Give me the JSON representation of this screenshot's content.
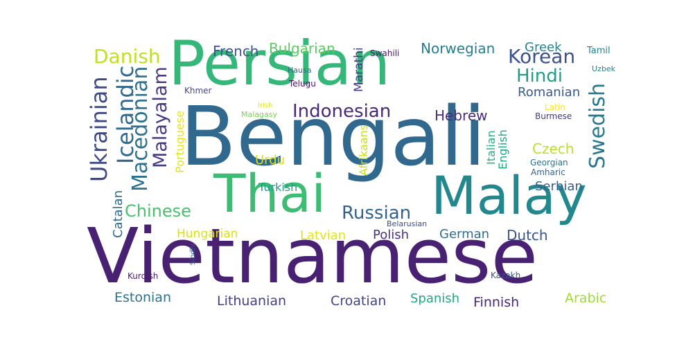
{
  "words": [
    {
      "text": "Bengali",
      "color": "#31688e"
    },
    {
      "text": "Vietnamese",
      "color": "#482173"
    },
    {
      "text": "Persian",
      "color": "#35b779"
    },
    {
      "text": "Thai",
      "color": "#3dbc74"
    },
    {
      "text": "Malay",
      "color": "#23888e"
    },
    {
      "text": "Indonesian",
      "color": "#482878"
    },
    {
      "text": "Danish",
      "color": "#c2df23"
    },
    {
      "text": "Korean",
      "color": "#3b528b"
    },
    {
      "text": "Hindi",
      "color": "#1f9e89"
    },
    {
      "text": "Russian",
      "color": "#33638d"
    },
    {
      "text": "Chinese",
      "color": "#4ac16d"
    },
    {
      "text": "Swedish",
      "color": "#2a788e"
    },
    {
      "text": "Ukrainian",
      "color": "#3e4989"
    },
    {
      "text": "Icelandic",
      "color": "#31688e"
    },
    {
      "text": "Macedonian",
      "color": "#2c728e"
    },
    {
      "text": "Malayalam",
      "color": "#443983"
    },
    {
      "text": "Norwegian",
      "color": "#287c8e"
    },
    {
      "text": "French",
      "color": "#3b528b"
    },
    {
      "text": "Bulgarian",
      "color": "#5ec962"
    },
    {
      "text": "Greek",
      "color": "#25858e"
    },
    {
      "text": "Tamil",
      "color": "#26828e"
    },
    {
      "text": "Swahili",
      "color": "#48186a"
    },
    {
      "text": "Marathi",
      "color": "#443a83"
    },
    {
      "text": "Hausa",
      "color": "#31688e"
    },
    {
      "text": "Uzbek",
      "color": "#26828e"
    },
    {
      "text": "Khmer",
      "color": "#414487"
    },
    {
      "text": "Telugu",
      "color": "#471164"
    },
    {
      "text": "Romanian",
      "color": "#38598c"
    },
    {
      "text": "Hebrew",
      "color": "#472d7b"
    },
    {
      "text": "Latin",
      "color": "#fde725"
    },
    {
      "text": "Burmese",
      "color": "#453781"
    },
    {
      "text": "Irish",
      "color": "#dde318"
    },
    {
      "text": "Malagasy",
      "color": "#7ad151"
    },
    {
      "text": "Portuguese",
      "color": "#e5e419"
    },
    {
      "text": "Czech",
      "color": "#bddf26"
    },
    {
      "text": "Amharic",
      "color": "#33638d"
    },
    {
      "text": "Georgian",
      "color": "#2d708e"
    },
    {
      "text": "English",
      "color": "#20a486"
    },
    {
      "text": "Italian",
      "color": "#27ad81"
    },
    {
      "text": "Afrikaans",
      "color": "#c8e020"
    },
    {
      "text": "Urdu",
      "color": "#d5e21a"
    },
    {
      "text": "Turkish",
      "color": "#1e9b8a"
    },
    {
      "text": "Serbian",
      "color": "#355f8d"
    },
    {
      "text": "Catalan",
      "color": "#31688e"
    },
    {
      "text": "Hungarian",
      "color": "#d8e219"
    },
    {
      "text": "Belarusian",
      "color": "#3e4a89"
    },
    {
      "text": "Latvian",
      "color": "#e2e418"
    },
    {
      "text": "Polish",
      "color": "#46327e"
    },
    {
      "text": "German",
      "color": "#2e6e8e"
    },
    {
      "text": "Dutch",
      "color": "#3b528b"
    },
    {
      "text": "Sindhi",
      "color": "#38588c"
    },
    {
      "text": "Kurdish",
      "color": "#481b6d"
    },
    {
      "text": "Kazakh",
      "color": "#3b528b"
    },
    {
      "text": "Estonian",
      "color": "#2c718e"
    },
    {
      "text": "Lithuanian",
      "color": "#433e85"
    },
    {
      "text": "Croatian",
      "color": "#414487"
    },
    {
      "text": "Spanish",
      "color": "#22a785"
    },
    {
      "text": "Finnish",
      "color": "#482475"
    },
    {
      "text": "Arabic",
      "color": "#a0da39"
    }
  ]
}
